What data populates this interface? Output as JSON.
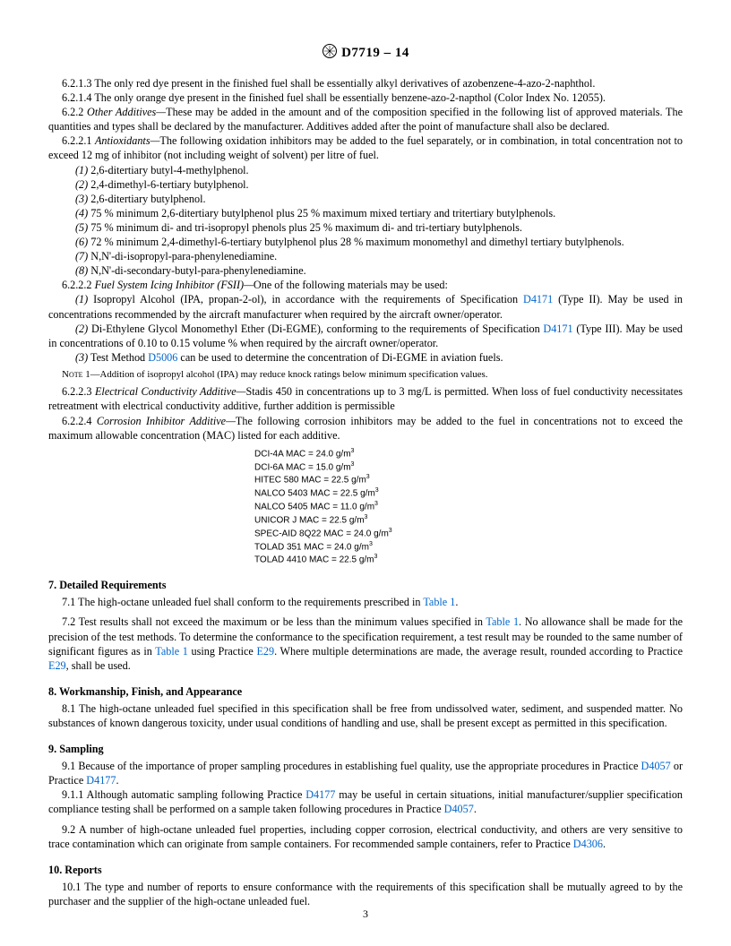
{
  "header": {
    "designation": "D7719 – 14"
  },
  "paragraphs": {
    "p6213": "6.2.1.3 The only red dye present in the finished fuel shall be essentially alkyl derivatives of azobenzene-4-azo-2-naphthol.",
    "p6214": "6.2.1.4 The only orange dye present in the finished fuel shall be essentially benzene-azo-2-napthol (Color Index No. 12055).",
    "p622_label": "6.2.2 ",
    "p622_ital": "Other Additives—",
    "p622_text": "These may be added in the amount and of the composition specified in the following list of approved materials. The quantities and types shall be declared by the manufacturer. Additives added after the point of manufacture shall also be declared.",
    "p6221_label": "6.2.2.1 ",
    "p6221_ital": "Antioxidants—",
    "p6221_text": "The following oxidation inhibitors may be added to the fuel separately, or in combination, in total concentration not to exceed 12 mg of inhibitor (not including weight of solvent) per litre of fuel.",
    "li1_n": "(1)",
    "li1": " 2,6-ditertiary butyl-4-methylphenol.",
    "li2_n": "(2)",
    "li2": " 2,4-dimethyl-6-tertiary butylphenol.",
    "li3_n": "(3)",
    "li3": " 2,6-ditertiary butylphenol.",
    "li4_n": "(4)",
    "li4": " 75 % minimum 2,6-ditertiary butylphenol plus 25 % maximum mixed tertiary and tritertiary butylphenols.",
    "li5_n": "(5)",
    "li5": " 75 % minimum di- and tri-isopropyl phenols plus 25 % maximum di- and tri-tertiary butylphenols.",
    "li6_n": "(6)",
    "li6": " 72 % minimum 2,4-dimethyl-6-tertiary butylphenol plus 28 % maximum monomethyl and dimethyl tertiary butylphenols.",
    "li7_n": "(7)",
    "li7": " N,N'-di-isopropyl-para-phenylenediamine.",
    "li8_n": "(8)",
    "li8": " N,N'-di-secondary-butyl-para-phenylenediamine.",
    "p6222_label": "6.2.2.2 ",
    "p6222_ital": "Fuel System Icing Inhibitor (FSII)—",
    "p6222_text": "One of the following materials may be used:",
    "fsii1_n": "(1)",
    "fsii1_a": " Isopropyl Alcohol (IPA, propan-2-ol), in accordance with the requirements of Specification ",
    "fsii1_link": "D4171",
    "fsii1_b": " (Type II). May be used in concentrations recommended by the aircraft manufacturer when required by the aircraft owner/operator.",
    "fsii2_n": "(2)",
    "fsii2_a": " Di-Ethylene Glycol Monomethyl Ether (Di-EGME), conforming to the requirements of Specification ",
    "fsii2_link": "D4171",
    "fsii2_b": " (Type III). May be used in concentrations of 0.10 to 0.15 volume % when required by the aircraft owner/operator.",
    "fsii3_n": "(3)",
    "fsii3_a": " Test Method ",
    "fsii3_link": "D5006",
    "fsii3_b": " can be used to determine the concentration of Di-EGME in aviation fuels.",
    "note1_label": "Note 1",
    "note1": "—Addition of isopropyl alcohol (IPA) may reduce knock ratings below minimum specification values.",
    "p6223_label": "6.2.2.3 ",
    "p6223_ital": "Electrical Conductivity Additive—",
    "p6223_text": "Stadis 450 in concentrations up to 3 mg/L is permitted. When loss of fuel conductivity necessitates retreatment with electrical conductivity additive, further addition is permissible",
    "p6224_label": "6.2.2.4 ",
    "p6224_ital": "Corrosion Inhibitor Additive—",
    "p6224_text": "The following corrosion inhibitors may be added to the fuel in concentrations not to exceed the maximum allowable concentration (MAC) listed for each additive."
  },
  "mac_table": [
    {
      "name": "DCI-4A MAC = 24.0 g/m",
      "exp": "3"
    },
    {
      "name": "DCI-6A MAC = 15.0 g/m",
      "exp": "3"
    },
    {
      "name": "HITEC 580 MAC = 22.5 g/m",
      "exp": "3"
    },
    {
      "name": "NALCO 5403 MAC = 22.5 g/m",
      "exp": "3"
    },
    {
      "name": "NALCO 5405 MAC = 11.0 g/m",
      "exp": "3"
    },
    {
      "name": "UNICOR J MAC = 22.5 g/m",
      "exp": "3"
    },
    {
      "name": "SPEC-AID 8Q22 MAC = 24.0 g/m",
      "exp": "3"
    },
    {
      "name": "TOLAD 351 MAC = 24.0 g/m",
      "exp": "3"
    },
    {
      "name": "TOLAD 4410 MAC = 22.5 g/m",
      "exp": "3"
    }
  ],
  "sec7": {
    "heading": "7.  Detailed Requirements",
    "p71_a": "7.1  The high-octane unleaded fuel shall conform to the requirements prescribed in ",
    "p71_link": "Table 1",
    "p71_b": ".",
    "p72_a": "7.2  Test results shall not exceed the maximum or be less than the minimum values specified in ",
    "p72_link1": "Table 1",
    "p72_b": ". No allowance shall be made for the precision of the test methods. To determine the conformance to the specification requirement, a test result may be rounded to the same number of significant figures as in ",
    "p72_link2": "Table 1",
    "p72_c": " using Practice ",
    "p72_link3": "E29",
    "p72_d": ". Where multiple determinations are made, the average result, rounded according to Practice ",
    "p72_link4": "E29",
    "p72_e": ", shall be used."
  },
  "sec8": {
    "heading": "8.  Workmanship, Finish, and Appearance",
    "p81": "8.1  The high-octane unleaded fuel specified in this specification shall be free from undissolved water, sediment, and suspended matter. No substances of known dangerous toxicity, under usual conditions of handling and use, shall be present except as permitted in this specification."
  },
  "sec9": {
    "heading": "9.  Sampling",
    "p91_a": "9.1  Because of the importance of proper sampling procedures in establishing fuel quality, use the appropriate procedures in Practice ",
    "p91_link1": "D4057",
    "p91_b": " or Practice ",
    "p91_link2": "D4177",
    "p91_c": ".",
    "p911_a": "9.1.1  Although automatic sampling following Practice ",
    "p911_link1": "D4177",
    "p911_b": " may be useful in certain situations, initial manufacturer/supplier specification compliance testing shall be performed on a sample taken following procedures in Practice ",
    "p911_link2": "D4057",
    "p911_c": ".",
    "p92_a": "9.2  A number of high-octane unleaded fuel properties, including copper corrosion, electrical conductivity, and others are very sensitive to trace contamination which can originate from sample containers. For recommended sample containers, refer to Practice ",
    "p92_link": "D4306",
    "p92_b": "."
  },
  "sec10": {
    "heading": "10.  Reports",
    "p101": "10.1  The type and number of reports to ensure conformance with the requirements of this specification shall be mutually agreed to by the purchaser and the supplier of the high-octane unleaded fuel."
  },
  "page_number": "3"
}
